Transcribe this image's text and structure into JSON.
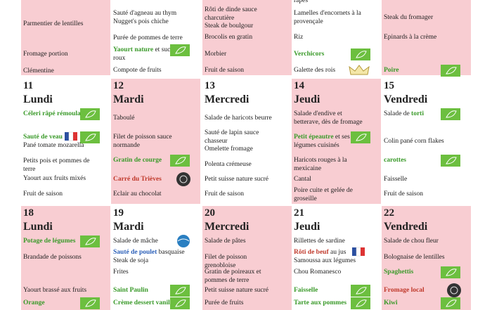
{
  "weeks": [
    {
      "days": [
        {
          "items": [
            {
              "parts": [
                {
                  "text": "Parmentier de lentilles"
                }
              ]
            },
            {
              "parts": [
                {
                  "text": "Fromage portion"
                }
              ]
            },
            {
              "parts": [
                {
                  "text": "Clémentine"
                }
              ]
            }
          ]
        },
        {
          "items": [
            {
              "parts": [
                {
                  "text": "Sauté d'agneau au thym"
                }
              ]
            },
            {
              "parts": [
                {
                  "text": "Nugget's pois chiche"
                }
              ]
            },
            {
              "parts": [
                {
                  "text": "Purée de pommes de terre"
                }
              ]
            },
            {
              "parts": [
                {
                  "text": "Yaourt nature",
                  "color": "green"
                },
                {
                  "text": " et sucre roux"
                }
              ],
              "icon": "bio"
            },
            {
              "parts": [
                {
                  "text": "Compote de fruits"
                }
              ]
            }
          ]
        },
        {
          "items": [
            {
              "parts": [
                {
                  "text": "Rôti de dinde sauce charcutière"
                }
              ]
            },
            {
              "parts": [
                {
                  "text": "Steak de boulgour"
                }
              ]
            },
            {
              "parts": [
                {
                  "text": "Brocolis en gratin"
                }
              ]
            },
            {
              "parts": [
                {
                  "text": "Morbier"
                }
              ]
            },
            {
              "parts": [
                {
                  "text": "Fruit de saison"
                }
              ]
            }
          ]
        },
        {
          "items": [
            {
              "parts": [
                {
                  "text": "râpés"
                }
              ]
            },
            {
              "parts": [
                {
                  "text": "Lamelles d'encornets  à la provençale"
                }
              ]
            },
            {
              "parts": [
                {
                  "text": "Riz"
                }
              ]
            },
            {
              "parts": [
                {
                  "text": "Verchicors",
                  "color": "green"
                }
              ],
              "icon": "bio"
            },
            {
              "parts": [
                {
                  "text": "Galette des rois"
                }
              ],
              "icon": "crown"
            }
          ]
        },
        {
          "items": [
            {
              "parts": [
                {
                  "text": "Steak du fromager"
                }
              ]
            },
            {
              "parts": [
                {
                  "text": "Epinards à la crème"
                }
              ]
            },
            {
              "parts": [
                {
                  "text": "Poire",
                  "color": "green"
                }
              ],
              "icon": "bio"
            }
          ]
        }
      ]
    },
    {
      "days": [
        {
          "number": "11",
          "name": "Lundi",
          "items": [
            {
              "parts": [
                {
                  "text": "Céleri râpé rémoulade",
                  "color": "green"
                }
              ],
              "icon": "bio"
            },
            {
              "parts": [
                {
                  "text": "Sauté de veau",
                  "color": "green"
                }
              ],
              "icon": "label-bio"
            },
            {
              "parts": [
                {
                  "text": "Pané tomate mozarella"
                }
              ]
            },
            {
              "parts": [
                {
                  "text": "Petits pois et pommes de terre"
                }
              ]
            },
            {
              "parts": [
                {
                  "text": "Yaourt aux fruits mixés"
                }
              ]
            },
            {
              "parts": [
                {
                  "text": "Fruit de saison"
                }
              ]
            }
          ]
        },
        {
          "number": "12",
          "name": "Mardi",
          "items": [
            {
              "parts": [
                {
                  "text": "Taboulé"
                }
              ]
            },
            {
              "parts": [
                {
                  "text": "Filet de poisson sauce normande"
                }
              ]
            },
            {
              "parts": [
                {
                  "text": "Gratin de courge",
                  "color": "green"
                }
              ],
              "icon": "bio"
            },
            {
              "parts": [
                {
                  "text": "Carré du Trièves",
                  "color": "red"
                }
              ],
              "icon": "round"
            },
            {
              "parts": [
                {
                  "text": "Eclair au chocolat"
                }
              ]
            }
          ]
        },
        {
          "number": "13",
          "name": "Mercredi",
          "items": [
            {
              "parts": [
                {
                  "text": "Salade de haricots beurre"
                }
              ]
            },
            {
              "parts": [
                {
                  "text": "Sauté de lapin sauce chasseur"
                }
              ]
            },
            {
              "parts": [
                {
                  "text": "Omelette fromage"
                }
              ]
            },
            {
              "parts": [
                {
                  "text": "Polenta crémeuse"
                }
              ]
            },
            {
              "parts": [
                {
                  "text": "Petit suisse nature sucré"
                }
              ]
            },
            {
              "parts": [
                {
                  "text": "Fruit de saison"
                }
              ]
            }
          ]
        },
        {
          "number": "14",
          "name": "Jeudi",
          "items": [
            {
              "parts": [
                {
                  "text": "Salade d'endive et betterave, dès de fromage"
                }
              ]
            },
            {
              "parts": [
                {
                  "text": "Petit épeautre",
                  "color": "green"
                },
                {
                  "text": " et ses légumes cuisinés"
                }
              ],
              "icon": "bio"
            },
            {
              "parts": [
                {
                  "text": "Haricots rouges à la mexicaine"
                }
              ]
            },
            {
              "parts": [
                {
                  "text": "Cantal"
                }
              ]
            },
            {
              "parts": [
                {
                  "text": "Poire cuite et gelée de groseille"
                }
              ]
            }
          ]
        },
        {
          "number": "15",
          "name": "Vendredi",
          "items": [
            {
              "parts": [
                {
                  "text": "Salade de "
                },
                {
                  "text": "torti",
                  "color": "green"
                }
              ],
              "icon": "bio"
            },
            {
              "parts": [
                {
                  "text": "Colin pané corn flakes"
                }
              ]
            },
            {
              "parts": [
                {
                  "text": "carottes",
                  "color": "green"
                }
              ],
              "icon": "bio"
            },
            {
              "parts": [
                {
                  "text": "Faisselle"
                }
              ]
            },
            {
              "parts": [
                {
                  "text": "Fruit de saison"
                }
              ]
            }
          ]
        }
      ]
    },
    {
      "days": [
        {
          "number": "18",
          "name": "Lundi",
          "items": [
            {
              "parts": [
                {
                  "text": "Potage de légumes",
                  "color": "green"
                }
              ],
              "icon": "bio"
            },
            {
              "parts": [
                {
                  "text": "Brandade de poissons"
                }
              ]
            },
            {
              "parts": [
                {
                  "text": "Yaourt brassé aux fruits"
                }
              ]
            },
            {
              "parts": [
                {
                  "text": "Orange",
                  "color": "green"
                }
              ],
              "icon": "bio"
            }
          ]
        },
        {
          "number": "19",
          "name": "Mardi",
          "items": [
            {
              "parts": [
                {
                  "text": "Salade de mâche"
                }
              ],
              "icon": "blue-round"
            },
            {
              "parts": [
                {
                  "text": "Sauté de poulet",
                  "color": "blue"
                },
                {
                  "text": " basquaise"
                }
              ]
            },
            {
              "parts": [
                {
                  "text": "Steak de soja"
                }
              ]
            },
            {
              "parts": [
                {
                  "text": "Frites"
                }
              ]
            },
            {
              "parts": [
                {
                  "text": "Saint Paulin",
                  "color": "green"
                }
              ],
              "icon": "bio"
            },
            {
              "parts": [
                {
                  "text": "Crème dessert vanille",
                  "color": "green"
                }
              ],
              "icon": "bio"
            }
          ]
        },
        {
          "number": "20",
          "name": "Mercredi",
          "items": [
            {
              "parts": [
                {
                  "text": "Salade de  pâtes"
                }
              ]
            },
            {
              "parts": [
                {
                  "text": "Filet de poisson grenobloise"
                }
              ]
            },
            {
              "parts": [
                {
                  "text": "Gratin de poireaux et pommes de terre"
                }
              ]
            },
            {
              "parts": [
                {
                  "text": "Petit suisse nature sucré"
                }
              ]
            },
            {
              "parts": [
                {
                  "text": "Purée de fruits"
                }
              ]
            }
          ]
        },
        {
          "number": "21",
          "name": "Jeudi",
          "items": [
            {
              "parts": [
                {
                  "text": "Rillettes de sardine"
                }
              ]
            },
            {
              "parts": [
                {
                  "text": "Rôti de beuf",
                  "color": "red"
                },
                {
                  "text": " au jus"
                }
              ],
              "icon": "label"
            },
            {
              "parts": [
                {
                  "text": "Samoussa aux légumes"
                }
              ]
            },
            {
              "parts": [
                {
                  "text": "Chou Romanesco"
                }
              ]
            },
            {
              "parts": [
                {
                  "text": "Faisselle",
                  "color": "green"
                }
              ],
              "icon": "bio"
            },
            {
              "parts": [
                {
                  "text": "Tarte aux pommes",
                  "color": "green"
                }
              ],
              "icon": "bio"
            }
          ]
        },
        {
          "number": "22",
          "name": "Vendredi",
          "items": [
            {
              "parts": [
                {
                  "text": "Salade de chou fleur"
                }
              ]
            },
            {
              "parts": [
                {
                  "text": "Bolognaise de lentilles"
                }
              ]
            },
            {
              "parts": [
                {
                  "text": "Spaghettis",
                  "color": "green"
                }
              ],
              "icon": "bio"
            },
            {
              "parts": [
                {
                  "text": "Fromage local",
                  "color": "red"
                }
              ],
              "icon": "round"
            },
            {
              "parts": [
                {
                  "text": "Kiwi",
                  "color": "green"
                }
              ],
              "icon": "bio"
            }
          ]
        }
      ]
    }
  ]
}
